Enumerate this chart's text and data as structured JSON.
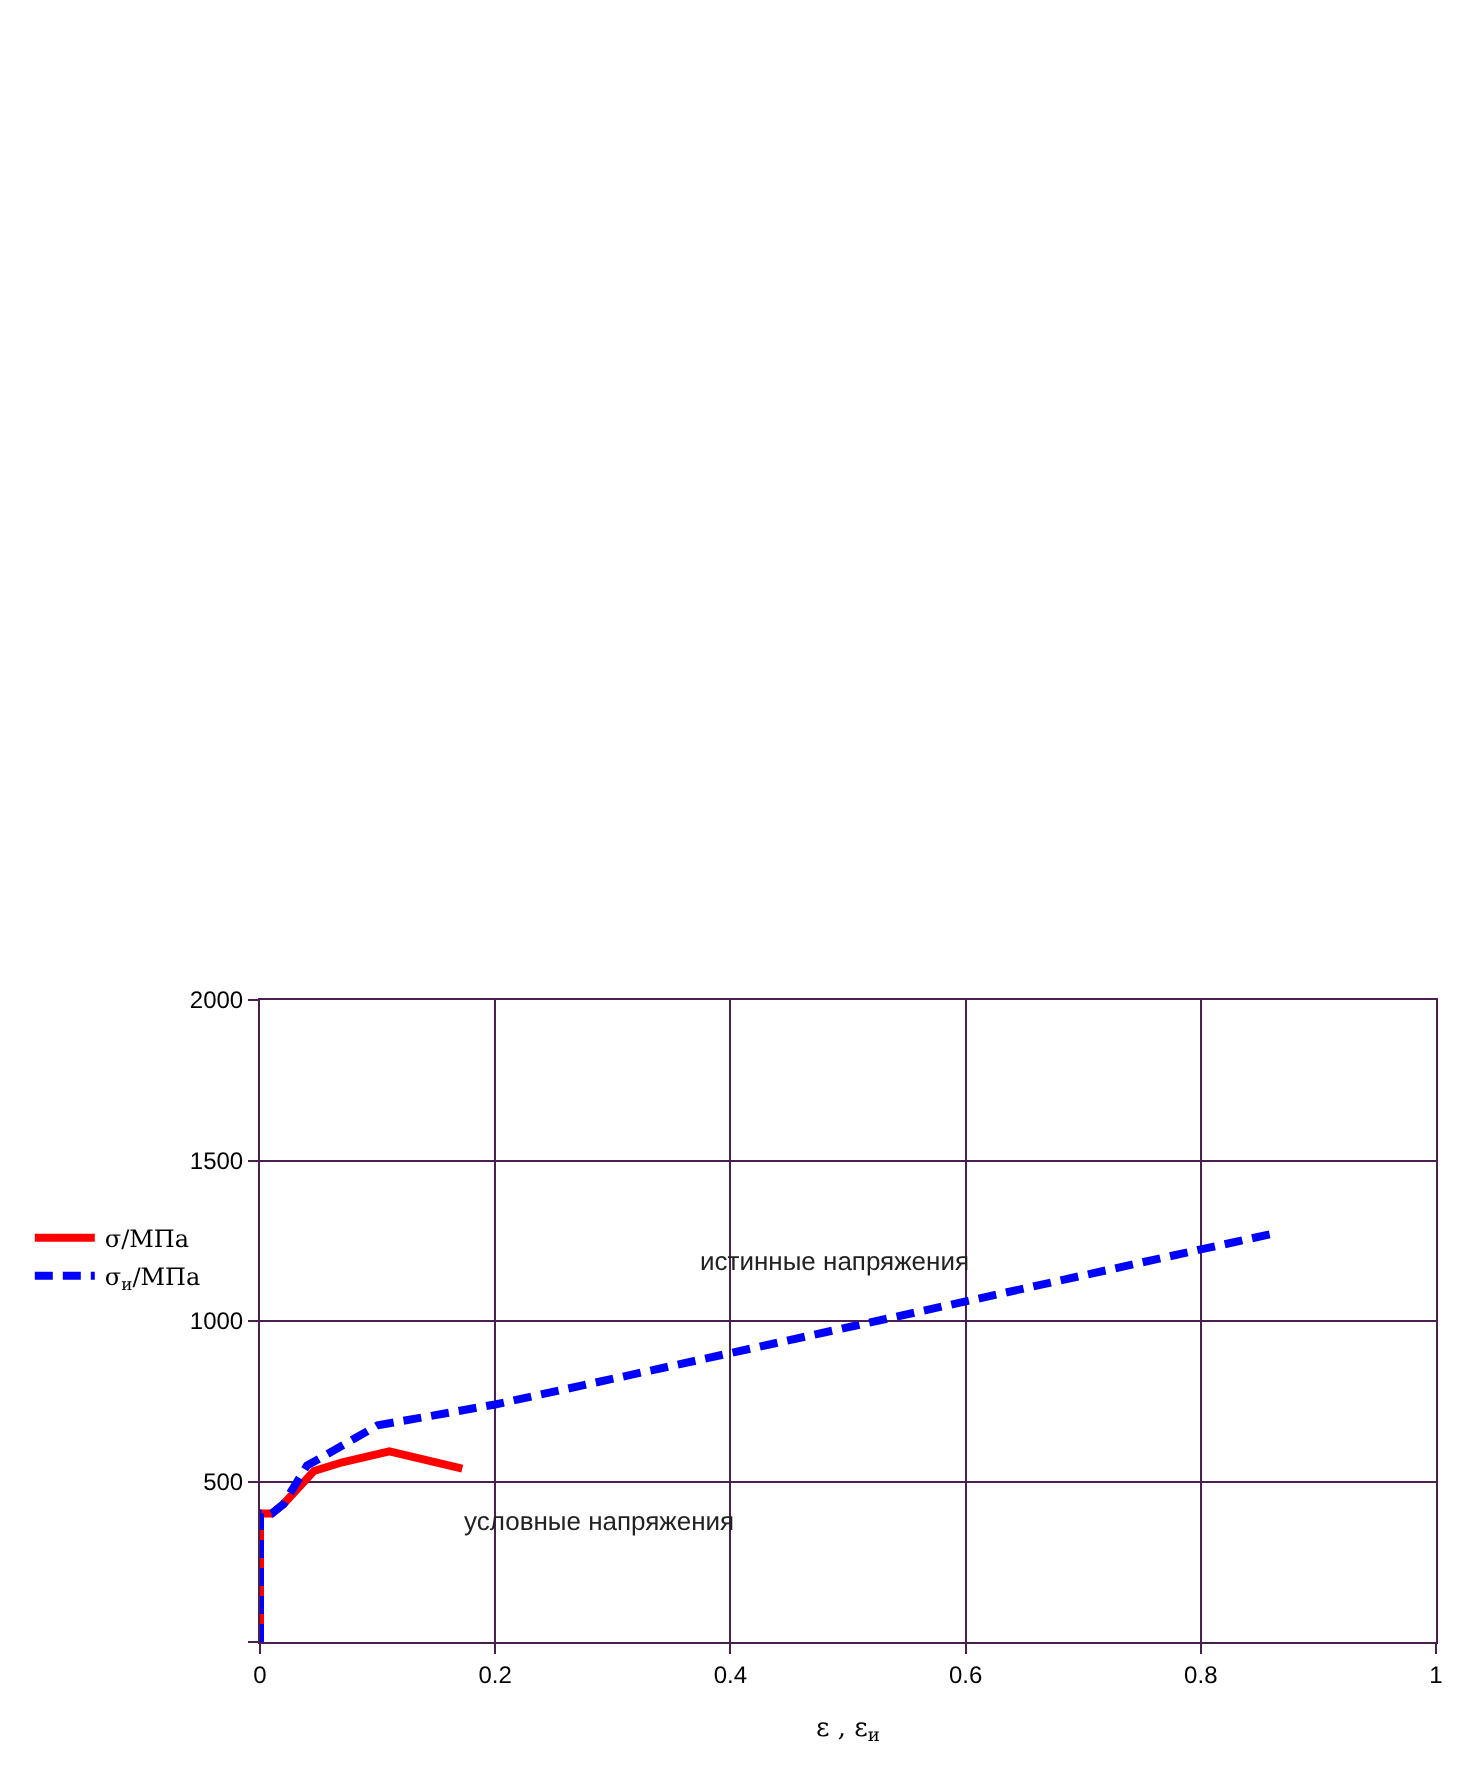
{
  "chart_data": {
    "type": "line",
    "xlabel": "ε , ε$_{и}$",
    "series": [
      {
        "name": "σ/МПа",
        "color": "#ff0000",
        "line_style": "solid",
        "x": [
          0,
          0,
          0.01,
          0.02,
          0.046,
          0.07,
          0.11,
          0.172
        ],
        "values": [
          0,
          400,
          400,
          430,
          533,
          560,
          594,
          540
        ]
      },
      {
        "name": "σ$_{и}$/МПа",
        "color": "#0000ff",
        "line_style": "dashed",
        "x": [
          0,
          0,
          0.01,
          0.02,
          0.04,
          0.05,
          0.1,
          0.2,
          0.4,
          0.6,
          0.8,
          0.859
        ],
        "values": [
          0,
          400,
          400,
          430,
          550,
          570,
          675,
          740,
          900,
          1061,
          1223,
          1270
        ]
      }
    ],
    "annotations": [
      "истинные напряжения",
      "условные напряжения"
    ],
    "xlim": [
      0,
      1
    ],
    "xticks": [
      0,
      0.2,
      0.4,
      0.6,
      0.8,
      1
    ],
    "ylim": [
      0,
      2000
    ],
    "yticks": [
      {
        "value": 0,
        "label": null
      },
      500,
      1000,
      1500,
      2000
    ],
    "grid": true,
    "legend": "left"
  }
}
